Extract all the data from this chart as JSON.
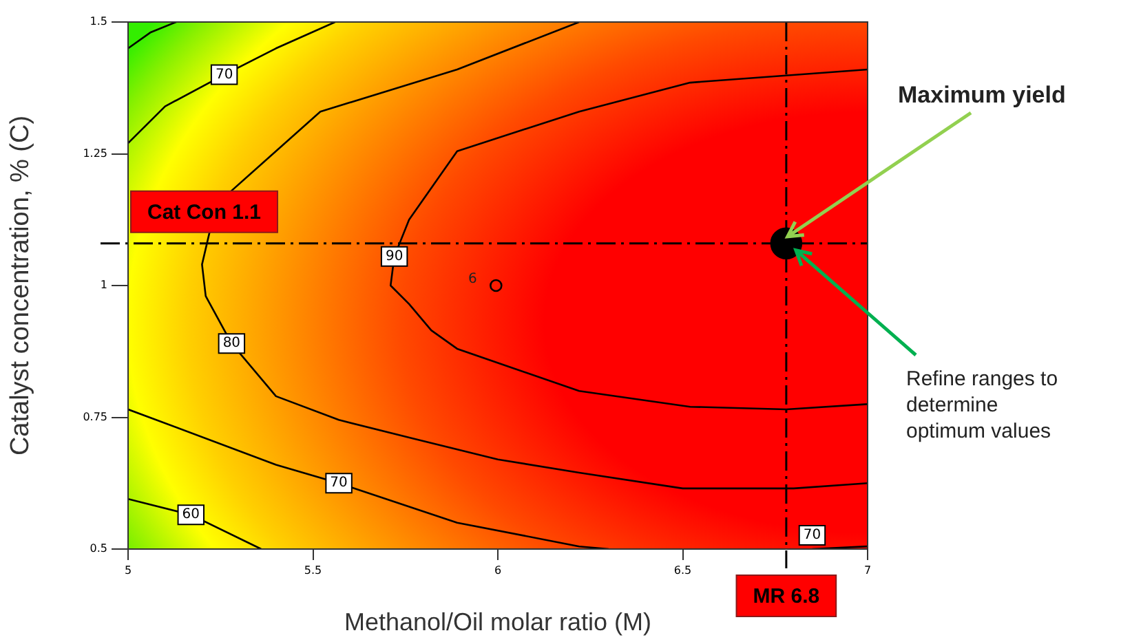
{
  "chart_data": {
    "type": "line",
    "xlabel": "Methanol/Oil molar ratio (M)",
    "ylabel": "Catalyst concentration, % (C)",
    "xlim": [
      5,
      7
    ],
    "ylim": [
      0.5,
      1.5
    ],
    "xticks": [
      5,
      5.5,
      6,
      6.5,
      7
    ],
    "yticks": [
      0.5,
      0.75,
      1,
      1.25,
      1.5
    ],
    "grid": false,
    "legend": false,
    "marker": "none",
    "line_style": "solid",
    "series": [
      {
        "color": "#000000",
        "x": [
          5,
          5.06,
          5.13
        ],
        "values": [
          1.45,
          1.48,
          1.5
        ]
      },
      {
        "name": "70",
        "color": "#000000",
        "x": [
          5,
          5.1,
          5.26,
          5.4,
          5.56
        ],
        "values": [
          1.27,
          1.34,
          1.4,
          1.45,
          1.5
        ]
      },
      {
        "name": "80",
        "color": "#000000",
        "x": [
          6.22,
          5.89,
          5.52,
          5.28,
          5.22,
          5.2,
          5.21,
          5.28,
          5.4,
          5.57,
          5.77,
          6,
          6.22,
          6.5,
          6.8,
          7
        ],
        "values": [
          1.5,
          1.41,
          1.33,
          1.18,
          1.1,
          1.04,
          0.98,
          0.89,
          0.79,
          0.745,
          0.71,
          0.67,
          0.645,
          0.615,
          0.615,
          0.625
        ]
      },
      {
        "name": "90",
        "color": "#000000",
        "x": [
          7,
          6.52,
          6.22,
          5.89,
          5.76,
          5.72,
          5.71,
          5.76,
          5.82,
          5.89,
          6.22,
          6.52,
          6.78,
          7
        ],
        "values": [
          1.41,
          1.385,
          1.33,
          1.255,
          1.125,
          1.055,
          1,
          0.965,
          0.915,
          0.88,
          0.8,
          0.77,
          0.765,
          0.775
        ]
      },
      {
        "name": "70",
        "color": "#000000",
        "x": [
          5,
          5.4,
          5.57,
          5.89,
          6.22,
          6.3,
          6.6,
          6.85,
          7
        ],
        "values": [
          0.765,
          0.66,
          0.625,
          0.55,
          0.505,
          0.5,
          null,
          0.5,
          0.505
        ]
      },
      {
        "name": "60",
        "color": "#000000",
        "x": [
          5,
          5.17,
          5.36
        ],
        "values": [
          0.595,
          0.565,
          0.5
        ]
      },
      {
        "type": "scatter",
        "color": "#000000",
        "marker": "circle",
        "x": [
          5.995
        ],
        "values": [
          1
        ]
      },
      {
        "type": "scatter",
        "color": "#000000",
        "marker": "circle",
        "x": [
          6.78
        ],
        "values": [
          1.08
        ]
      }
    ],
    "ref_lines": [
      {
        "axis": "y",
        "value": 1.08,
        "label": "Cat Con 1.1",
        "line_style": "dashed"
      },
      {
        "axis": "x",
        "value": 6.78,
        "label": "MR 6.8",
        "line_style": "dashed"
      }
    ],
    "annotations": [
      "6",
      {
        "text": "Maximum yield",
        "x": 6.78,
        "y": 1.08
      },
      {
        "text": "Refine ranges to determine optimum values",
        "x": 6.78,
        "y": 1.08
      }
    ]
  }
}
